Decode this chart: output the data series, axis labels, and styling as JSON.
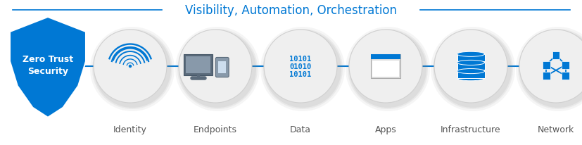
{
  "title": "Visibility, Automation, Orchestration",
  "title_color": "#0078D4",
  "title_fontsize": 12,
  "shield_label": "Zero Trust\nSecurity",
  "shield_color": "#0078D4",
  "shield_text_color": "#ffffff",
  "components": [
    "Identity",
    "Endpoints",
    "Data",
    "Apps",
    "Infrastructure",
    "Network"
  ],
  "circle_facecolor": "#efefef",
  "circle_edgecolor": "#d0d0d0",
  "icon_color": "#0078D4",
  "connector_color": "#0078D4",
  "label_color": "#555555",
  "label_fontsize": 9,
  "background_color": "#ffffff",
  "line_color": "#0078D4"
}
